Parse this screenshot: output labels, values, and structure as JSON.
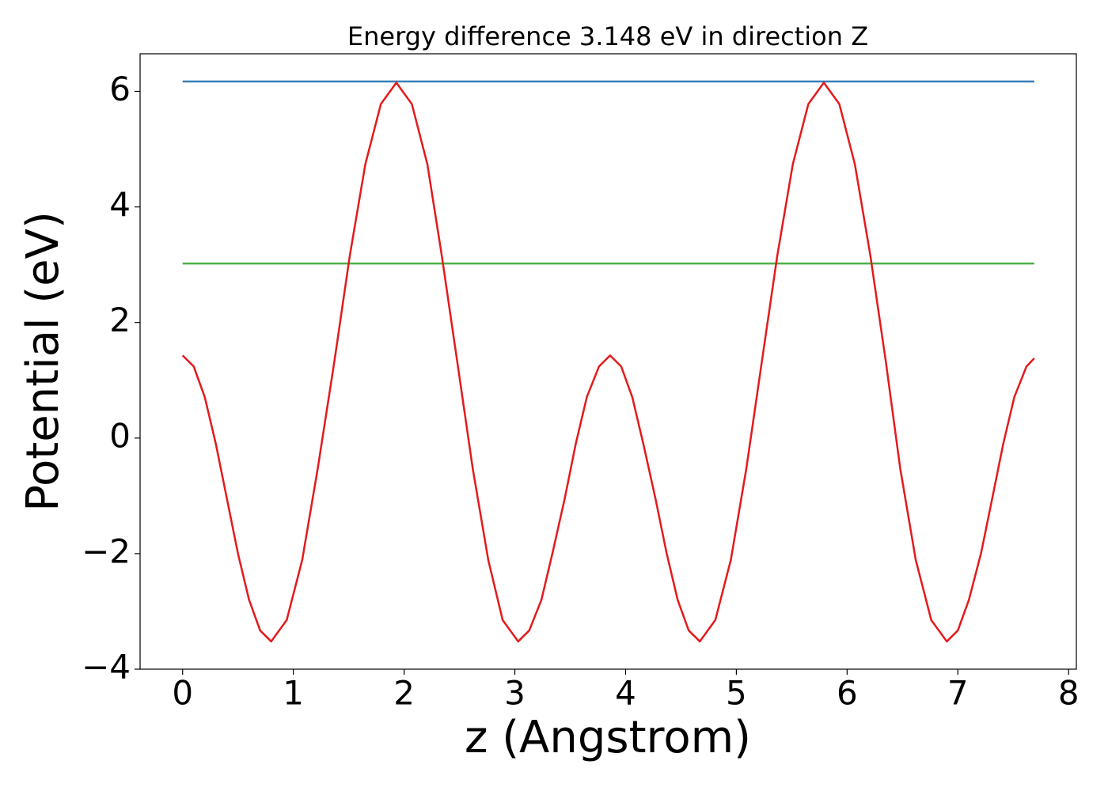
{
  "chart_data": {
    "type": "line",
    "title": "Energy difference 3.148 eV in direction Z",
    "xlabel": "z (Angstrom)",
    "ylabel": "Potential (eV)",
    "series": [
      {
        "color": "#377eb8",
        "x": [
          0,
          7.69
        ],
        "values": [
          6.17,
          6.17
        ]
      },
      {
        "color": "#4daf4a",
        "x": [
          0,
          7.69
        ],
        "values": [
          3.02,
          3.02
        ]
      },
      {
        "color": "#e41a1c",
        "x": [
          0,
          0.1,
          0.2,
          0.3,
          0.4,
          0.5,
          0.6,
          0.7,
          0.8,
          0.94,
          1.08,
          1.22,
          1.37,
          1.51,
          1.65,
          1.79,
          1.93,
          2.07,
          2.21,
          2.34,
          2.48,
          2.62,
          2.76,
          2.89,
          3.03,
          3.13,
          3.24,
          3.34,
          3.45,
          3.55,
          3.65,
          3.76,
          3.86,
          3.96,
          4.06,
          4.16,
          4.27,
          4.37,
          4.47,
          4.57,
          4.67,
          4.81,
          4.95,
          5.09,
          5.23,
          5.37,
          5.51,
          5.65,
          5.79,
          5.93,
          6.07,
          6.21,
          6.35,
          6.48,
          6.62,
          6.76,
          6.9,
          7.0,
          7.1,
          7.21,
          7.31,
          7.41,
          7.51,
          7.62,
          7.69
        ],
        "values": [
          1.43,
          1.24,
          0.71,
          -0.1,
          -1.05,
          -2.0,
          -2.8,
          -3.33,
          -3.52,
          -3.15,
          -2.11,
          -0.53,
          1.32,
          3.16,
          4.74,
          5.78,
          6.15,
          5.78,
          4.74,
          3.16,
          1.32,
          -0.53,
          -2.11,
          -3.15,
          -3.52,
          -3.33,
          -2.8,
          -1.99,
          -1.05,
          -0.1,
          0.71,
          1.24,
          1.43,
          1.24,
          0.71,
          -0.1,
          -1.05,
          -1.99,
          -2.8,
          -3.33,
          -3.52,
          -3.15,
          -2.11,
          -0.53,
          1.32,
          3.16,
          4.74,
          5.78,
          6.15,
          5.78,
          4.74,
          3.16,
          1.32,
          -0.53,
          -2.11,
          -3.15,
          -3.52,
          -3.33,
          -2.8,
          -1.99,
          -1.05,
          -0.1,
          0.71,
          1.24,
          1.38
        ]
      }
    ],
    "xlim": [
      -0.384,
      8.07
    ],
    "ylim": [
      -4.0,
      6.65
    ],
    "xticks": [
      0,
      1,
      2,
      3,
      4,
      5,
      6,
      7,
      8
    ],
    "yticks": [
      {
        "value": -4,
        "label": "−4"
      },
      {
        "value": -2,
        "label": "−2"
      },
      0,
      2,
      4,
      6
    ]
  }
}
